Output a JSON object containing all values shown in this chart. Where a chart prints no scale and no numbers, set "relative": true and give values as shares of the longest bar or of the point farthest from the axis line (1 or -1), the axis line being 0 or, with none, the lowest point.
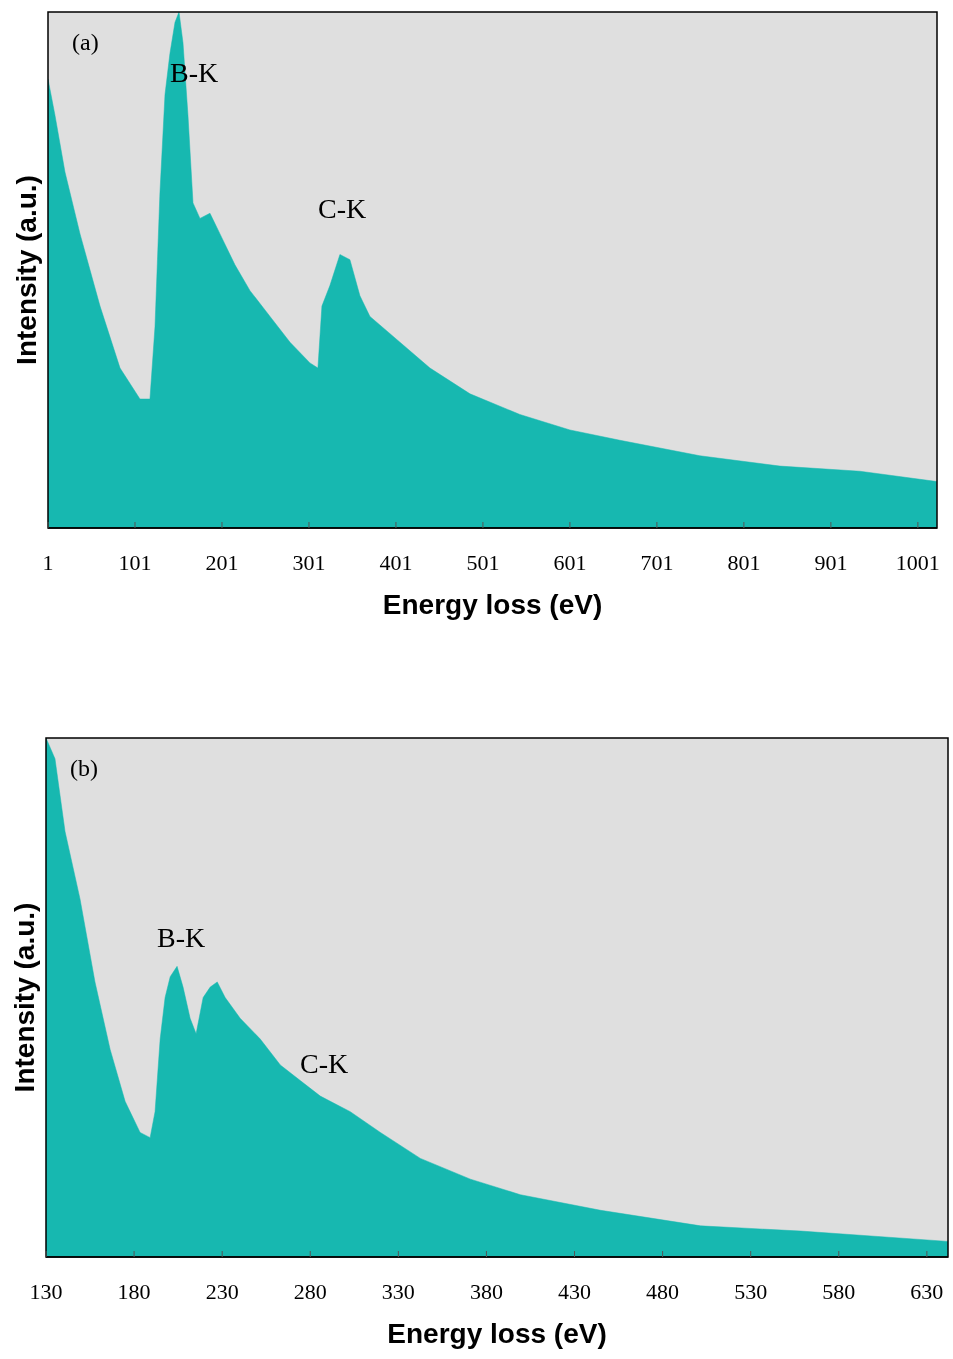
{
  "chart_data": [
    {
      "type": "area",
      "title": "(a)",
      "xlabel": "Energy loss (eV)",
      "ylabel": "Intensity (a.u.)",
      "relative": true,
      "xlim": [
        1,
        1023
      ],
      "xticks": [
        1,
        101,
        201,
        301,
        401,
        501,
        601,
        701,
        801,
        901,
        1001
      ],
      "grid": false,
      "series": [
        {
          "color": "#17b8b0",
          "x": [
            1,
            9,
            20.5,
            37.8,
            60.8,
            83.8,
            106.7,
            118.2,
            124,
            129.7,
            135.5,
            141.2,
            147,
            151.6,
            156.2,
            161.9,
            167.7,
            175.7,
            187.2,
            198.7,
            215.9,
            233.2,
            256.2,
            279.2,
            302.1,
            311.3,
            315.9,
            325.1,
            336.6,
            348.1,
            359.6,
            371.1,
            405.6,
            440.1,
            486.1,
            543.5,
            601,
            658.5,
            750.4,
            842.4,
            934.3,
            1022.8
          ],
          "values": [
            0.87,
            0.8,
            0.69,
            0.57,
            0.43,
            0.31,
            0.25,
            0.25,
            0.39,
            0.65,
            0.84,
            0.92,
            0.98,
            1,
            0.94,
            0.8,
            0.63,
            0.6,
            0.61,
            0.57,
            0.51,
            0.46,
            0.41,
            0.36,
            0.32,
            0.31,
            0.43,
            0.47,
            0.53,
            0.52,
            0.45,
            0.41,
            0.36,
            0.31,
            0.26,
            0.22,
            0.19,
            0.17,
            0.14,
            0.12,
            0.11,
            0.09
          ]
        }
      ],
      "annotations": [
        "B-K",
        "C-K"
      ]
    },
    {
      "type": "area",
      "title": "(b)",
      "xlabel": "Energy loss (eV)",
      "ylabel": "Intensity (a.u.)",
      "relative": true,
      "xlim": [
        130,
        642
      ],
      "xticks": [
        130,
        180,
        230,
        280,
        330,
        380,
        430,
        480,
        530,
        580,
        630
      ],
      "grid": false,
      "series": [
        {
          "color": "#17b8b0",
          "x": [
            130,
            135.1,
            140.8,
            149.3,
            157.8,
            166.4,
            174.9,
            183.4,
            189.1,
            191.9,
            194.8,
            197.6,
            200.5,
            204.4,
            207.8,
            211.8,
            215.2,
            219.2,
            223.2,
            227.2,
            231.7,
            240.2,
            251.6,
            263,
            274.3,
            285.7,
            302.7,
            319.8,
            342.5,
            370.9,
            399.3,
            444.8,
            501.6,
            558.4,
            642
          ],
          "values": [
            1,
            0.96,
            0.82,
            0.69,
            0.53,
            0.4,
            0.3,
            0.24,
            0.23,
            0.28,
            0.42,
            0.5,
            0.54,
            0.56,
            0.52,
            0.46,
            0.43,
            0.5,
            0.52,
            0.53,
            0.5,
            0.46,
            0.42,
            0.37,
            0.34,
            0.31,
            0.28,
            0.24,
            0.19,
            0.15,
            0.12,
            0.09,
            0.06,
            0.05,
            0.03
          ]
        }
      ],
      "annotations": [
        "B-K",
        "C-K"
      ]
    }
  ]
}
